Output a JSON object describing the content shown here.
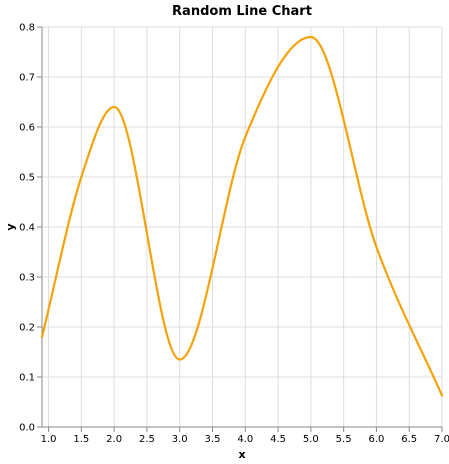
{
  "chart_data": {
    "type": "line",
    "title": "Random Line Chart",
    "xlabel": "x",
    "ylabel": "y",
    "xlim": [
      0.9,
      7.0
    ],
    "ylim": [
      0.0,
      0.8
    ],
    "x_ticks": [
      "1.0",
      "1.5",
      "2.0",
      "2.5",
      "3.0",
      "3.5",
      "4.0",
      "4.5",
      "5.0",
      "5.5",
      "6.0",
      "6.5",
      "7.0"
    ],
    "y_ticks": [
      "0.0",
      "0.1",
      "0.2",
      "0.3",
      "0.4",
      "0.5",
      "0.6",
      "0.7",
      "0.8"
    ],
    "grid": true,
    "colors": {
      "line": "#f5a20a",
      "grid": "#dddddd",
      "axis": "#888888"
    },
    "series": [
      {
        "x": [
          0.9,
          1.5,
          2.0,
          3.0,
          4.0,
          5.0,
          6.0,
          7.0
        ],
        "y": [
          0.18,
          0.5,
          0.64,
          0.135,
          0.58,
          0.78,
          0.36,
          0.063
        ]
      }
    ]
  }
}
